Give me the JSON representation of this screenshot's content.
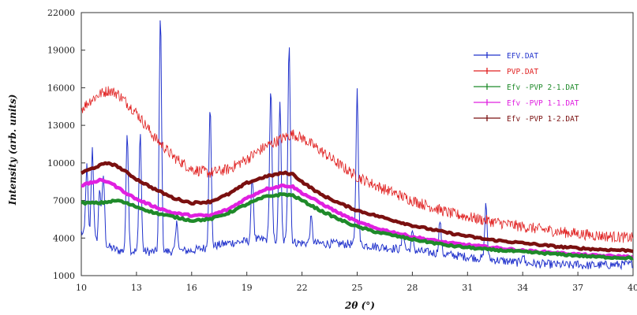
{
  "chart_data": {
    "type": "line",
    "title": "",
    "xlabel": "2θ (°)",
    "ylabel": "Intensity (arb. units)",
    "xlim": [
      10,
      40
    ],
    "ylim": [
      1000,
      22000
    ],
    "xticks": [
      10,
      13,
      16,
      19,
      22,
      25,
      28,
      31,
      34,
      37,
      40
    ],
    "yticks": [
      1000,
      4000,
      7000,
      10000,
      13000,
      16000,
      19000,
      22000
    ],
    "grid": false,
    "legend_position": "top-right",
    "series": [
      {
        "name": "EFV.DAT",
        "color": "#2233cc",
        "style": "noisy-peaks",
        "x": [
          10,
          10.3,
          10.6,
          11.0,
          11.2,
          12.0,
          12.5,
          13.2,
          14.3,
          15.2,
          17.0,
          19.3,
          20.3,
          20.8,
          21.3,
          22.5,
          25.0,
          27.5,
          28.0,
          29.5,
          30.5,
          32.0,
          34.0,
          37.0,
          40.0
        ],
        "y": [
          4500,
          9700,
          11200,
          8000,
          9000,
          3000,
          12500,
          12500,
          21800,
          5200,
          14600,
          9000,
          16000,
          15000,
          19800,
          5600,
          15800,
          4500,
          4400,
          5400,
          2500,
          6700,
          2800,
          2000,
          2000
        ]
      },
      {
        "name": "PVP.DAT",
        "color": "#e02020",
        "style": "noisy",
        "x": [
          10,
          10.5,
          11,
          11.5,
          12,
          13,
          14,
          15,
          16,
          17,
          18,
          19,
          20,
          21,
          21.5,
          22,
          23,
          24,
          25,
          26,
          28,
          30,
          32,
          34,
          36,
          38,
          40
        ],
        "y": [
          14300,
          15000,
          15500,
          15800,
          15500,
          14000,
          12000,
          10500,
          9500,
          9200,
          9500,
          10300,
          11300,
          12000,
          12300,
          12000,
          11000,
          9900,
          8900,
          8200,
          7000,
          6000,
          5400,
          4900,
          4500,
          4200,
          4000
        ]
      },
      {
        "name": "Efv -PVP 2-1.DAT",
        "color": "#1f8a2a",
        "style": "thick",
        "x": [
          10,
          11,
          12,
          13,
          14,
          15,
          16,
          17,
          18,
          19,
          20,
          21,
          21.5,
          22,
          23,
          24,
          25,
          26,
          28,
          30,
          32,
          34,
          36,
          38,
          40
        ],
        "y": [
          6800,
          6800,
          7000,
          6500,
          6000,
          5700,
          5400,
          5500,
          6000,
          6700,
          7300,
          7500,
          7400,
          7000,
          6200,
          5500,
          4900,
          4500,
          3900,
          3400,
          3100,
          2900,
          2700,
          2500,
          2400
        ]
      },
      {
        "name": "Efv -PVP 1-1.DAT",
        "color": "#e020e0",
        "style": "thick",
        "x": [
          10,
          11,
          11.5,
          12,
          13,
          14,
          15,
          16,
          17,
          18,
          19,
          20,
          21,
          21.5,
          22,
          23,
          24,
          25,
          26,
          28,
          30,
          32,
          34,
          36,
          38,
          40
        ],
        "y": [
          8200,
          8600,
          8500,
          8000,
          7100,
          6500,
          6000,
          5800,
          5800,
          6300,
          7200,
          7900,
          8200,
          8100,
          7600,
          6800,
          6000,
          5300,
          4800,
          4100,
          3600,
          3300,
          3000,
          2800,
          2600,
          2500
        ]
      },
      {
        "name": "Efv -PVP 1-2.DAT",
        "color": "#7a1010",
        "style": "thick",
        "x": [
          10,
          11,
          11.5,
          12,
          13,
          14,
          15,
          16,
          17,
          18,
          19,
          20,
          21,
          21.5,
          22,
          23,
          24,
          25,
          26,
          28,
          30,
          32,
          34,
          36,
          38,
          40
        ],
        "y": [
          9200,
          9800,
          10000,
          9700,
          8700,
          7900,
          7200,
          6800,
          6900,
          7500,
          8400,
          8900,
          9200,
          9100,
          8500,
          7500,
          6800,
          6200,
          5800,
          5000,
          4400,
          3900,
          3600,
          3300,
          3100,
          3000
        ]
      }
    ]
  }
}
